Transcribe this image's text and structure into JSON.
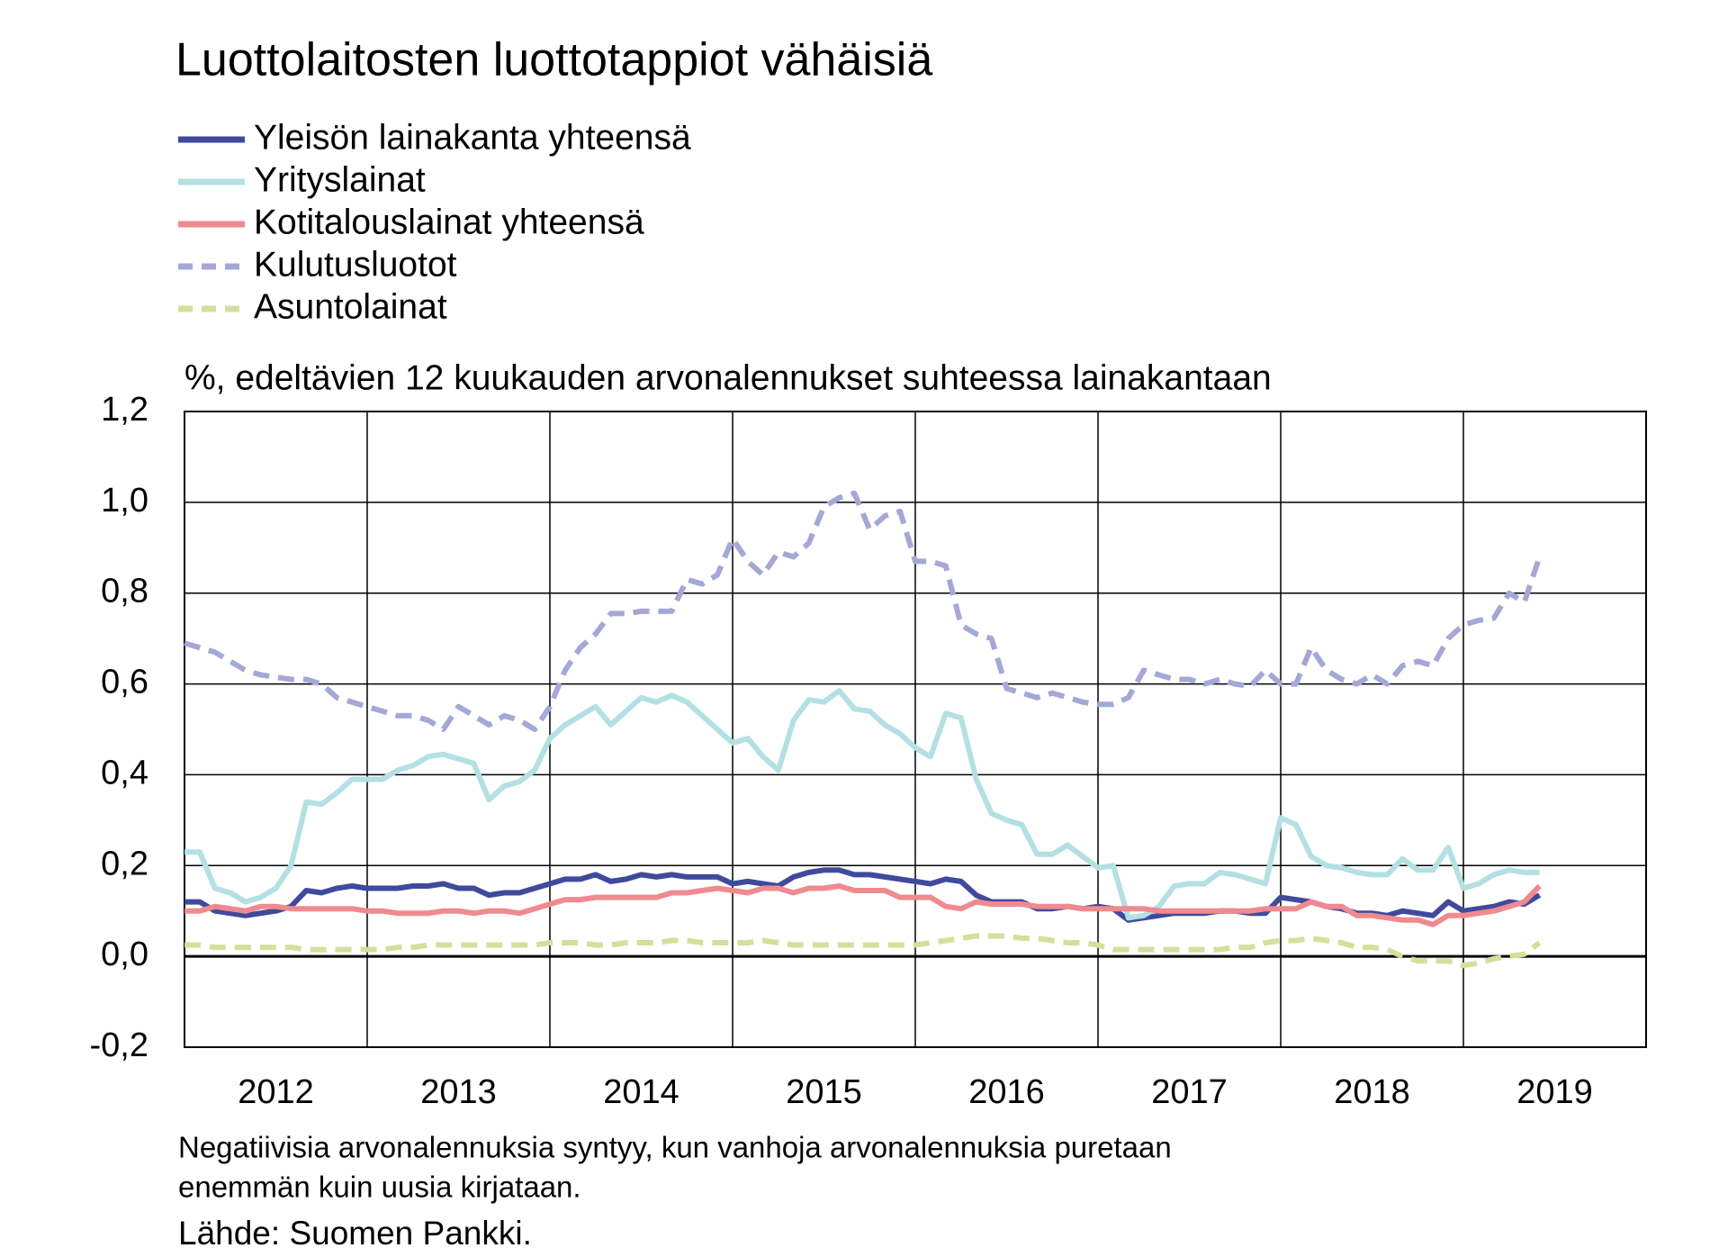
{
  "chart_data": {
    "type": "line",
    "title": "Luottolaitosten luottotappiot vähäisiä",
    "subtitle": "%, edeltävien 12 kuukauden arvonalennukset suhteessa lainakantaan",
    "notes": [
      "Negatiivisia arvonalennuksia syntyy, kun vanhoja arvonalennuksia puretaan",
      "enemmän kuin uusia kirjataan."
    ],
    "source": "Lähde: Suomen Pankki.",
    "categories": [
      "2012",
      null,
      null,
      null,
      null,
      null,
      null,
      null,
      null,
      null,
      null,
      null,
      "2013",
      null,
      null,
      null,
      null,
      null,
      null,
      null,
      null,
      null,
      null,
      null,
      "2014",
      null,
      null,
      null,
      null,
      null,
      null,
      null,
      null,
      null,
      null,
      null,
      "2015",
      null,
      null,
      null,
      null,
      null,
      null,
      null,
      null,
      null,
      null,
      null,
      "2016",
      null,
      null,
      null,
      null,
      null,
      null,
      null,
      null,
      null,
      null,
      null,
      "2017",
      null,
      null,
      null,
      null,
      null,
      null,
      null,
      null,
      null,
      null,
      null,
      "2018",
      null,
      null,
      null,
      null,
      null,
      null,
      null,
      null,
      null,
      null,
      null,
      "2019",
      null,
      null,
      null,
      null,
      null,
      null,
      null,
      null,
      null,
      null,
      null
    ],
    "ylim": [
      -0.2,
      1.2
    ],
    "yticks": [
      {
        "value": -0.2,
        "label": "-0,2"
      },
      {
        "value": 0,
        "label": "0,0"
      },
      {
        "value": 0.2,
        "label": "0,2"
      },
      {
        "value": 0.4,
        "label": "0,4"
      },
      {
        "value": 0.6,
        "label": "0,6"
      },
      {
        "value": 0.8,
        "label": "0,8"
      },
      {
        "value": 1.0,
        "label": "1,0"
      },
      {
        "value": 1.2,
        "label": "1,2"
      }
    ],
    "grid": true,
    "series": [
      {
        "name": "Yleisön lainakanta yhteensä",
        "color": "#3f4a9c",
        "dashed": false,
        "values": [
          0.12,
          0.12,
          0.1,
          0.095,
          0.09,
          0.095,
          0.1,
          0.11,
          0.145,
          0.14,
          0.15,
          0.155,
          0.15,
          0.15,
          0.15,
          0.155,
          0.155,
          0.16,
          0.15,
          0.15,
          0.135,
          0.14,
          0.14,
          0.15,
          0.16,
          0.17,
          0.17,
          0.18,
          0.165,
          0.17,
          0.18,
          0.175,
          0.18,
          0.175,
          0.175,
          0.175,
          0.16,
          0.165,
          0.16,
          0.155,
          0.175,
          0.185,
          0.19,
          0.19,
          0.18,
          0.18,
          0.175,
          0.17,
          0.165,
          0.16,
          0.17,
          0.165,
          0.135,
          0.12,
          0.12,
          0.12,
          0.105,
          0.105,
          0.11,
          0.105,
          0.11,
          0.105,
          0.08,
          0.085,
          0.09,
          0.095,
          0.095,
          0.095,
          0.1,
          0.1,
          0.095,
          0.095,
          0.13,
          0.125,
          0.12,
          0.11,
          0.105,
          0.095,
          0.095,
          0.09,
          0.1,
          0.095,
          0.09,
          0.12,
          0.1,
          0.105,
          0.11,
          0.12,
          0.115,
          0.135,
          null,
          null,
          null,
          null,
          null,
          null
        ]
      },
      {
        "name": "Yrityslainat",
        "color": "#b3e0e3",
        "dashed": false,
        "values": [
          0.23,
          0.23,
          0.15,
          0.14,
          0.12,
          0.13,
          0.15,
          0.2,
          0.34,
          0.335,
          0.36,
          0.39,
          0.39,
          0.39,
          0.41,
          0.42,
          0.44,
          0.445,
          0.435,
          0.425,
          0.345,
          0.375,
          0.385,
          0.41,
          0.48,
          0.51,
          0.53,
          0.55,
          0.51,
          0.54,
          0.57,
          0.56,
          0.575,
          0.56,
          0.53,
          0.5,
          0.47,
          0.48,
          0.44,
          0.41,
          0.52,
          0.565,
          0.56,
          0.585,
          0.545,
          0.54,
          0.51,
          0.49,
          0.46,
          0.44,
          0.535,
          0.525,
          0.39,
          0.315,
          0.3,
          0.29,
          0.225,
          0.225,
          0.245,
          0.22,
          0.195,
          0.2,
          0.085,
          0.09,
          0.11,
          0.155,
          0.16,
          0.16,
          0.185,
          0.18,
          0.17,
          0.16,
          0.305,
          0.29,
          0.22,
          0.2,
          0.195,
          0.185,
          0.18,
          0.18,
          0.215,
          0.19,
          0.19,
          0.24,
          0.15,
          0.16,
          0.18,
          0.19,
          0.185,
          0.185,
          null,
          null,
          null,
          null,
          null,
          null
        ]
      },
      {
        "name": "Kotitalouslainat yhteensä",
        "color": "#ef8a8f",
        "dashed": false,
        "values": [
          0.1,
          0.1,
          0.11,
          0.105,
          0.1,
          0.11,
          0.11,
          0.105,
          0.105,
          0.105,
          0.105,
          0.105,
          0.1,
          0.1,
          0.095,
          0.095,
          0.095,
          0.1,
          0.1,
          0.095,
          0.1,
          0.1,
          0.095,
          0.105,
          0.115,
          0.125,
          0.125,
          0.13,
          0.13,
          0.13,
          0.13,
          0.13,
          0.14,
          0.14,
          0.145,
          0.15,
          0.145,
          0.14,
          0.15,
          0.15,
          0.14,
          0.15,
          0.15,
          0.155,
          0.145,
          0.145,
          0.145,
          0.13,
          0.13,
          0.13,
          0.11,
          0.105,
          0.12,
          0.115,
          0.115,
          0.115,
          0.11,
          0.11,
          0.11,
          0.105,
          0.105,
          0.105,
          0.105,
          0.105,
          0.1,
          0.1,
          0.1,
          0.1,
          0.1,
          0.1,
          0.1,
          0.105,
          0.105,
          0.105,
          0.12,
          0.11,
          0.11,
          0.09,
          0.09,
          0.085,
          0.08,
          0.08,
          0.07,
          0.09,
          0.09,
          0.095,
          0.1,
          0.11,
          0.12,
          0.155,
          null,
          null,
          null,
          null,
          null,
          null
        ]
      },
      {
        "name": "Kulutusluotot",
        "color": "#a3a8d6",
        "dashed": true,
        "values": [
          0.69,
          0.68,
          0.67,
          0.65,
          0.63,
          0.62,
          0.615,
          0.61,
          0.61,
          0.6,
          0.57,
          0.56,
          0.55,
          0.54,
          0.53,
          0.53,
          0.52,
          0.5,
          0.55,
          0.53,
          0.51,
          0.53,
          0.52,
          0.5,
          0.55,
          0.63,
          0.68,
          0.71,
          0.755,
          0.755,
          0.76,
          0.76,
          0.76,
          0.83,
          0.82,
          0.84,
          0.92,
          0.87,
          0.84,
          0.89,
          0.88,
          0.91,
          0.99,
          1.01,
          1.02,
          0.94,
          0.97,
          0.98,
          0.87,
          0.87,
          0.86,
          0.73,
          0.71,
          0.7,
          0.59,
          0.58,
          0.57,
          0.58,
          0.57,
          0.56,
          0.555,
          0.555,
          0.57,
          0.63,
          0.62,
          0.61,
          0.61,
          0.6,
          0.61,
          0.6,
          0.595,
          0.63,
          0.6,
          0.6,
          0.68,
          0.63,
          0.61,
          0.6,
          0.62,
          0.6,
          0.64,
          0.65,
          0.64,
          0.7,
          0.73,
          0.74,
          0.745,
          0.8,
          0.78,
          0.88,
          null,
          null,
          null,
          null,
          null,
          null
        ]
      },
      {
        "name": "Asuntolainat",
        "color": "#d3e09a",
        "dashed": true,
        "values": [
          0.025,
          0.025,
          0.02,
          0.02,
          0.02,
          0.02,
          0.02,
          0.02,
          0.015,
          0.015,
          0.015,
          0.015,
          0.015,
          0.015,
          0.02,
          0.02,
          0.025,
          0.025,
          0.025,
          0.025,
          0.025,
          0.025,
          0.025,
          0.025,
          0.03,
          0.03,
          0.03,
          0.025,
          0.025,
          0.03,
          0.03,
          0.03,
          0.035,
          0.035,
          0.03,
          0.03,
          0.03,
          0.03,
          0.035,
          0.03,
          0.025,
          0.025,
          0.025,
          0.025,
          0.025,
          0.025,
          0.025,
          0.025,
          0.025,
          0.03,
          0.035,
          0.04,
          0.045,
          0.045,
          0.045,
          0.04,
          0.04,
          0.035,
          0.03,
          0.03,
          0.025,
          0.015,
          0.015,
          0.015,
          0.015,
          0.015,
          0.015,
          0.015,
          0.015,
          0.02,
          0.02,
          0.03,
          0.035,
          0.035,
          0.04,
          0.035,
          0.03,
          0.02,
          0.02,
          0.015,
          0.0,
          -0.01,
          -0.01,
          -0.01,
          -0.02,
          -0.015,
          -0.005,
          0.0,
          0.005,
          0.03,
          null,
          null,
          null,
          null,
          null,
          null
        ]
      }
    ]
  }
}
